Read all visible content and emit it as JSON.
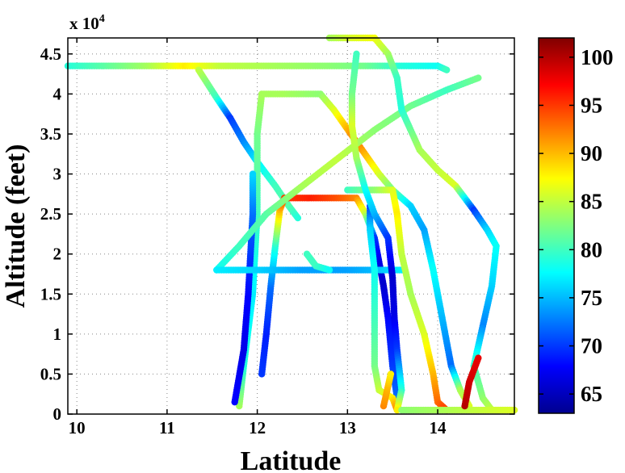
{
  "chart_data": {
    "type": "scatter",
    "title": "",
    "xlabel": "Latitude",
    "ylabel": "Altitude (feet)",
    "y_multiplier_label": "x 10",
    "y_multiplier_exponent": "4",
    "xlim": [
      9.9,
      14.85
    ],
    "ylim": [
      0,
      4.7
    ],
    "x_ticks": [
      10,
      11,
      12,
      13,
      14
    ],
    "y_ticks": [
      0,
      0.5,
      1,
      1.5,
      2,
      2.5,
      3,
      3.5,
      4,
      4.5
    ],
    "x_tick_labels": [
      "10",
      "11",
      "12",
      "13",
      "14"
    ],
    "y_tick_labels": [
      "0",
      "0.5",
      "1",
      "1.5",
      "2",
      "2.5",
      "3",
      "3.5",
      "4",
      "4.5"
    ],
    "grid": true,
    "colorbar": {
      "range": [
        63,
        102
      ],
      "ticks": [
        65,
        70,
        75,
        80,
        85,
        90,
        95,
        100
      ],
      "tick_labels": [
        "65",
        "70",
        "75",
        "80",
        "85",
        "90",
        "95",
        "100"
      ],
      "colormap": "jet"
    },
    "series": [
      {
        "points": [
          [
            9.9,
            4.35,
            79
          ],
          [
            10.3,
            4.35,
            81
          ],
          [
            10.8,
            4.35,
            84
          ],
          [
            11.2,
            4.35,
            88
          ],
          [
            11.6,
            4.35,
            85
          ],
          [
            12.2,
            4.35,
            84
          ],
          [
            12.8,
            4.35,
            83
          ],
          [
            13.2,
            4.35,
            82
          ],
          [
            13.6,
            4.35,
            79
          ],
          [
            14.0,
            4.35,
            78
          ],
          [
            14.1,
            4.3,
            80
          ]
        ]
      },
      {
        "points": [
          [
            11.35,
            4.3,
            85
          ],
          [
            11.55,
            3.95,
            80
          ],
          [
            11.7,
            3.7,
            70
          ],
          [
            11.85,
            3.4,
            73
          ],
          [
            12.0,
            3.15,
            77
          ],
          [
            12.2,
            2.85,
            80
          ],
          [
            12.35,
            2.6,
            81
          ],
          [
            12.45,
            2.45,
            79
          ]
        ]
      },
      {
        "points": [
          [
            11.8,
            0.1,
            84
          ],
          [
            11.85,
            0.6,
            79
          ],
          [
            11.95,
            1.5,
            77
          ],
          [
            12.0,
            2.5,
            80
          ],
          [
            12.0,
            3.5,
            82
          ],
          [
            12.05,
            4.0,
            84
          ],
          [
            12.3,
            4.0,
            84
          ],
          [
            12.7,
            4.0,
            83
          ],
          [
            12.85,
            3.8,
            86
          ],
          [
            13.1,
            3.4,
            93
          ],
          [
            13.35,
            3.0,
            86
          ],
          [
            13.5,
            2.8,
            82
          ],
          [
            13.7,
            2.6,
            76
          ],
          [
            13.85,
            2.3,
            74
          ],
          [
            13.95,
            1.8,
            78
          ],
          [
            14.05,
            1.2,
            75
          ],
          [
            14.15,
            0.6,
            72
          ],
          [
            14.25,
            0.3,
            84
          ],
          [
            14.35,
            0.1,
            86
          ]
        ]
      },
      {
        "points": [
          [
            11.75,
            0.15,
            68
          ],
          [
            11.85,
            0.8,
            67
          ],
          [
            11.9,
            1.5,
            68
          ],
          [
            11.95,
            2.5,
            72
          ],
          [
            11.95,
            3.0,
            76
          ]
        ]
      },
      {
        "points": [
          [
            12.05,
            0.5,
            70
          ],
          [
            12.1,
            1.0,
            69
          ],
          [
            12.15,
            1.6,
            72
          ],
          [
            12.2,
            2.1,
            79
          ],
          [
            12.25,
            2.55,
            90
          ],
          [
            12.3,
            2.7,
            95
          ],
          [
            12.6,
            2.7,
            96
          ],
          [
            12.9,
            2.7,
            94
          ],
          [
            13.1,
            2.7,
            92
          ],
          [
            13.2,
            2.5,
            85
          ],
          [
            13.3,
            2.2,
            70
          ],
          [
            13.35,
            1.9,
            67
          ],
          [
            13.4,
            1.6,
            66
          ],
          [
            13.45,
            1.2,
            68
          ],
          [
            13.5,
            0.6,
            70
          ],
          [
            13.55,
            0.2,
            72
          ]
        ]
      },
      {
        "points": [
          [
            11.55,
            1.8,
            78
          ],
          [
            11.8,
            2.1,
            80
          ],
          [
            12.1,
            2.5,
            81
          ],
          [
            12.5,
            2.85,
            84
          ],
          [
            12.9,
            3.2,
            85
          ],
          [
            13.3,
            3.55,
            83
          ],
          [
            13.7,
            3.85,
            82
          ],
          [
            14.1,
            4.05,
            80
          ],
          [
            14.45,
            4.2,
            82
          ]
        ]
      },
      {
        "points": [
          [
            11.55,
            1.8,
            77
          ],
          [
            12.0,
            1.8,
            76
          ],
          [
            12.5,
            1.8,
            74
          ],
          [
            13.0,
            1.8,
            74
          ],
          [
            13.3,
            1.8,
            75
          ],
          [
            13.6,
            1.8,
            77
          ]
        ]
      },
      {
        "points": [
          [
            12.55,
            2.0,
            80
          ],
          [
            12.65,
            1.85,
            80
          ],
          [
            12.8,
            1.8,
            78
          ]
        ]
      },
      {
        "points": [
          [
            13.0,
            2.8,
            80
          ],
          [
            13.3,
            2.8,
            83
          ],
          [
            13.5,
            2.8,
            86
          ],
          [
            13.55,
            2.5,
            88
          ],
          [
            13.6,
            2.0,
            85
          ],
          [
            13.7,
            1.5,
            84
          ],
          [
            13.85,
            1.0,
            86
          ],
          [
            13.95,
            0.5,
            90
          ],
          [
            14.0,
            0.15,
            93
          ],
          [
            14.1,
            0.05,
            95
          ]
        ]
      },
      {
        "points": [
          [
            13.25,
            2.6,
            70
          ],
          [
            13.25,
            2.3,
            76
          ],
          [
            13.3,
            1.8,
            78
          ],
          [
            13.3,
            1.2,
            80
          ],
          [
            13.3,
            0.6,
            82
          ],
          [
            13.35,
            0.3,
            85
          ],
          [
            13.5,
            0.2,
            88
          ],
          [
            13.55,
            0.05,
            92
          ]
        ]
      },
      {
        "points": [
          [
            13.1,
            4.5,
            80
          ],
          [
            13.05,
            4.0,
            82
          ],
          [
            13.05,
            3.6,
            86
          ],
          [
            13.1,
            3.2,
            84
          ],
          [
            13.2,
            2.8,
            78
          ],
          [
            13.3,
            2.5,
            75
          ],
          [
            13.45,
            2.2,
            70
          ],
          [
            13.5,
            1.7,
            66
          ],
          [
            13.52,
            1.2,
            67
          ],
          [
            13.55,
            0.8,
            70
          ],
          [
            13.6,
            0.3,
            79
          ],
          [
            13.55,
            0.05,
            88
          ]
        ]
      },
      {
        "points": [
          [
            12.8,
            4.7,
            84
          ],
          [
            13.05,
            4.7,
            86
          ],
          [
            13.3,
            4.7,
            87
          ],
          [
            13.45,
            4.5,
            84
          ],
          [
            13.55,
            4.2,
            80
          ],
          [
            13.6,
            3.8,
            79
          ],
          [
            13.8,
            3.3,
            84
          ],
          [
            14.0,
            3.05,
            85
          ],
          [
            14.2,
            2.85,
            86
          ],
          [
            14.4,
            2.55,
            70
          ],
          [
            14.55,
            2.3,
            76
          ],
          [
            14.65,
            2.1,
            78
          ],
          [
            14.6,
            1.6,
            76
          ],
          [
            14.5,
            1.1,
            73
          ],
          [
            14.4,
            0.6,
            80
          ],
          [
            14.5,
            0.2,
            83
          ],
          [
            14.6,
            0.05,
            85
          ],
          [
            14.85,
            0.05,
            86
          ]
        ]
      },
      {
        "points": [
          [
            13.6,
            0.05,
            83
          ],
          [
            14.0,
            0.05,
            84
          ],
          [
            14.4,
            0.05,
            85
          ],
          [
            14.85,
            0.05,
            86
          ]
        ]
      },
      {
        "points": [
          [
            14.3,
            0.1,
            100
          ],
          [
            14.35,
            0.4,
            99
          ],
          [
            14.45,
            0.7,
            98
          ]
        ]
      },
      {
        "points": [
          [
            13.4,
            0.1,
            92
          ],
          [
            13.45,
            0.35,
            90
          ],
          [
            13.48,
            0.5,
            88
          ]
        ]
      }
    ]
  }
}
